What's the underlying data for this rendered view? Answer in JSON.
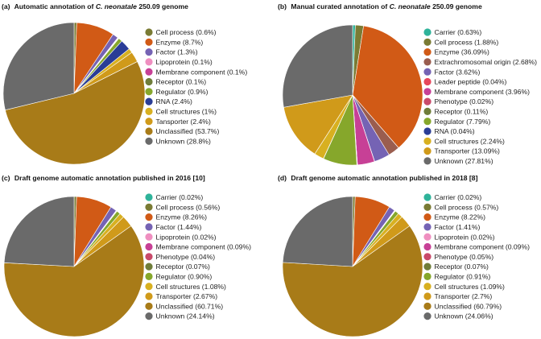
{
  "colors": {
    "carrier": "#2fb39a",
    "cell_process": "#7a7b34",
    "enzyme": "#d15a16",
    "extrachromosomal_origin": "#9a5d4f",
    "factor": "#7563b4",
    "leader_peptide": "#e7475c",
    "lipoprotein": "#ef8fc0",
    "membrane_component": "#c74096",
    "phenotype": "#c94a6a",
    "receptor": "#6f7d3a",
    "regulator": "#86a72b",
    "rna": "#2a3d96",
    "cell_structures": "#d8b020",
    "transporter": "#d09a1a",
    "unclassified": "#a87b18",
    "unknown": "#6a6a6a"
  },
  "chart_data": [
    {
      "type": "pie",
      "panel": "(a)",
      "title_prefix": "Automatic  annotation of ",
      "title_species": "C. neonatale",
      "title_suffix": " 250.09 genome",
      "slices": [
        {
          "key": "cell_process",
          "label": "Cell process (0.6%)",
          "value": 0.6
        },
        {
          "key": "enzyme",
          "label": "Enzyme (8.7%)",
          "value": 8.7
        },
        {
          "key": "factor",
          "label": "Factor (1.3%)",
          "value": 1.3
        },
        {
          "key": "lipoprotein",
          "label": "Lipoprotein (0.1%)",
          "value": 0.1
        },
        {
          "key": "membrane_component",
          "label": "Membrane component (0.1%)",
          "value": 0.1
        },
        {
          "key": "receptor",
          "label": "Receptor (0.1%)",
          "value": 0.1
        },
        {
          "key": "regulator",
          "label": "Regulator (0.9%)",
          "value": 0.9
        },
        {
          "key": "rna",
          "label": "RNA (2.4%)",
          "value": 2.4
        },
        {
          "key": "cell_structures",
          "label": "Cell structures (1%)",
          "value": 1.0
        },
        {
          "key": "transporter",
          "label": "Tansporter (2.4%)",
          "value": 2.4
        },
        {
          "key": "unclassified",
          "label": "Unclassified (53.7%)",
          "value": 53.7
        },
        {
          "key": "unknown",
          "label": "Unknown (28.8%)",
          "value": 28.8
        }
      ]
    },
    {
      "type": "pie",
      "panel": "(b)",
      "title_prefix": "Manual curated annotation of ",
      "title_species": "C. neonatale",
      "title_suffix": " 250.09 genome",
      "slices": [
        {
          "key": "carrier",
          "label": "Carrier (0.63%)",
          "value": 0.63
        },
        {
          "key": "cell_process",
          "label": "Cell process (1.88%)",
          "value": 1.88
        },
        {
          "key": "enzyme",
          "label": "Enzyme (36.09%)",
          "value": 36.09
        },
        {
          "key": "extrachromosomal_origin",
          "label": "Extrachromosomal origin (2.68%)",
          "value": 2.68
        },
        {
          "key": "factor",
          "label": "Factor (3.62%)",
          "value": 3.62
        },
        {
          "key": "leader_peptide",
          "label": "Leader peptide (0.04%)",
          "value": 0.04
        },
        {
          "key": "membrane_component",
          "label": "Membrane component (3.96%)",
          "value": 3.96
        },
        {
          "key": "phenotype",
          "label": "Phenotype (0.02%)",
          "value": 0.02
        },
        {
          "key": "receptor",
          "label": "Receptor (0.11%)",
          "value": 0.11
        },
        {
          "key": "regulator",
          "label": "Regulator (7.79%)",
          "value": 7.79
        },
        {
          "key": "rna",
          "label": "RNA (0.04%)",
          "value": 0.04
        },
        {
          "key": "cell_structures",
          "label": "Cell structures (2.24%)",
          "value": 2.24
        },
        {
          "key": "transporter",
          "label": "Transporter (13.09%)",
          "value": 13.09
        },
        {
          "key": "unknown",
          "label": "Unknown (27.81%)",
          "value": 27.81
        }
      ]
    },
    {
      "type": "pie",
      "panel": "(c)",
      "title_prefix": "Draft genome automatic annotation published in 2016 [10]",
      "title_species": "",
      "title_suffix": "",
      "slices": [
        {
          "key": "carrier",
          "label": "Carrier (0.02%)",
          "value": 0.02
        },
        {
          "key": "cell_process",
          "label": "Cell process (0.56%)",
          "value": 0.56
        },
        {
          "key": "enzyme",
          "label": "Enzyme (8.26%)",
          "value": 8.26
        },
        {
          "key": "factor",
          "label": "Factor (1.44%)",
          "value": 1.44
        },
        {
          "key": "lipoprotein",
          "label": "Lipoprotein (0.02%)",
          "value": 0.02
        },
        {
          "key": "membrane_component",
          "label": "Membrane component (0.09%)",
          "value": 0.09
        },
        {
          "key": "phenotype",
          "label": "Phenotype (0.04%)",
          "value": 0.04
        },
        {
          "key": "receptor",
          "label": "Receptor (0.07%)",
          "value": 0.07
        },
        {
          "key": "regulator",
          "label": "Regulator (0.90%)",
          "value": 0.9
        },
        {
          "key": "cell_structures",
          "label": "Cell structures (1.08%)",
          "value": 1.08
        },
        {
          "key": "transporter",
          "label": "Transporter (2.67%)",
          "value": 2.67
        },
        {
          "key": "unclassified",
          "label": "Unclassified (60.71%)",
          "value": 60.71
        },
        {
          "key": "unknown",
          "label": "Unknown (24.14%)",
          "value": 24.14
        }
      ]
    },
    {
      "type": "pie",
      "panel": "(d)",
      "title_prefix": "Draft genome automatic annotation published in 2018 [8]",
      "title_species": "",
      "title_suffix": "",
      "slices": [
        {
          "key": "carrier",
          "label": "Carrier (0.02%)",
          "value": 0.02
        },
        {
          "key": "cell_process",
          "label": "Cell process (0.57%)",
          "value": 0.57
        },
        {
          "key": "enzyme",
          "label": "Enzyme (8.22%)",
          "value": 8.22
        },
        {
          "key": "factor",
          "label": "Factor (1.41%)",
          "value": 1.41
        },
        {
          "key": "lipoprotein",
          "label": "Lipoprotein (0.02%)",
          "value": 0.02
        },
        {
          "key": "membrane_component",
          "label": "Membrane component (0.09%)",
          "value": 0.09
        },
        {
          "key": "phenotype",
          "label": "Phenotype (0.05%)",
          "value": 0.05
        },
        {
          "key": "receptor",
          "label": "Receptor (0.07%)",
          "value": 0.07
        },
        {
          "key": "regulator",
          "label": "Regulator (0.91%)",
          "value": 0.91
        },
        {
          "key": "cell_structures",
          "label": "Cell structures (1.09%)",
          "value": 1.09
        },
        {
          "key": "transporter",
          "label": "Transporter (2.7%)",
          "value": 2.7
        },
        {
          "key": "unclassified",
          "label": "Unclassified (60.79%)",
          "value": 60.79
        },
        {
          "key": "unknown",
          "label": "Unknown (24.06%)",
          "value": 24.06
        }
      ]
    }
  ]
}
